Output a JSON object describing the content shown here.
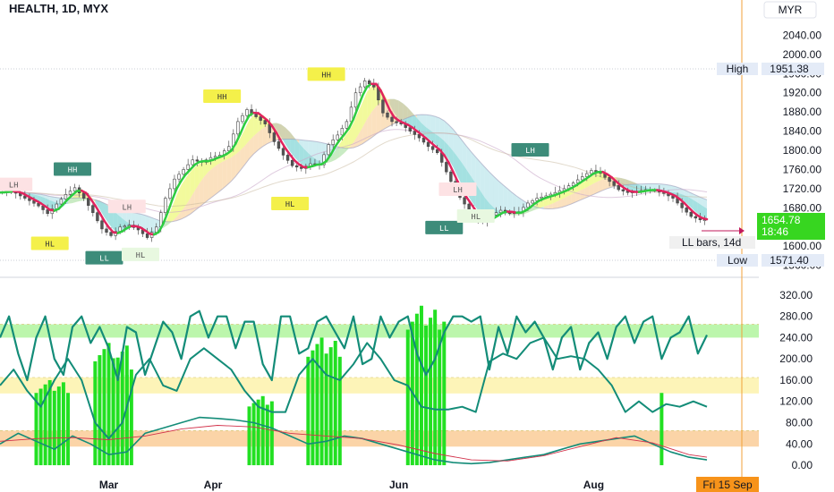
{
  "chart_data": {
    "type": "candlestick",
    "title": "HEALTH, 1D, MYX",
    "currency": "MYR",
    "price_axis": {
      "min": 1550,
      "max": 2080,
      "ticks": [
        "2040.00",
        "2000.00",
        "1960.00",
        "1920.00",
        "1880.00",
        "1840.00",
        "1800.00",
        "1760.00",
        "1720.00",
        "1680.00",
        "1640.00",
        "1600.00",
        "1560.00"
      ]
    },
    "osc_axis": {
      "min": -10,
      "max": 340,
      "ticks": [
        "320.00",
        "280.00",
        "240.00",
        "200.00",
        "160.00",
        "120.00",
        "80.00",
        "40.00",
        "0.00"
      ]
    },
    "x_labels": [
      {
        "label": "Mar",
        "day": 24
      },
      {
        "label": "Apr",
        "day": 47
      },
      {
        "label": "Jun",
        "day": 88
      },
      {
        "label": "Aug",
        "day": 131
      }
    ],
    "date_badge": "Fri 15 Sep",
    "days_total": 157,
    "markers": {
      "high": {
        "label": "High",
        "value": "1951.38",
        "price": 1951.38
      },
      "low": {
        "label": "Low",
        "value": "1571.40",
        "price": 1571.4
      },
      "last": {
        "value": "1654.78",
        "countdown": "18:46",
        "price": 1654.78
      },
      "note": "LL bars, 14d"
    },
    "bands_osc": [
      {
        "from": 240,
        "to": 265,
        "color": "#b5f5a3"
      },
      {
        "from": 135,
        "to": 165,
        "color": "#fdf3b0"
      },
      {
        "from": 35,
        "to": 65,
        "color": "#fbcf9d"
      }
    ],
    "close": [
      [
        0,
        1712
      ],
      [
        3,
        1716
      ],
      [
        5,
        1705
      ],
      [
        7,
        1695
      ],
      [
        9,
        1684
      ],
      [
        11,
        1668
      ],
      [
        13,
        1688
      ],
      [
        15,
        1708
      ],
      [
        17,
        1722
      ],
      [
        19,
        1700
      ],
      [
        21,
        1670
      ],
      [
        23,
        1636
      ],
      [
        25,
        1622
      ],
      [
        27,
        1640
      ],
      [
        29,
        1644
      ],
      [
        31,
        1634
      ],
      [
        33,
        1618
      ],
      [
        35,
        1640
      ],
      [
        37,
        1700
      ],
      [
        39,
        1740
      ],
      [
        41,
        1760
      ],
      [
        43,
        1780
      ],
      [
        45,
        1775
      ],
      [
        47,
        1785
      ],
      [
        49,
        1790
      ],
      [
        51,
        1808
      ],
      [
        53,
        1860
      ],
      [
        55,
        1885
      ],
      [
        57,
        1870
      ],
      [
        59,
        1855
      ],
      [
        61,
        1818
      ],
      [
        63,
        1790
      ],
      [
        65,
        1768
      ],
      [
        67,
        1762
      ],
      [
        69,
        1772
      ],
      [
        71,
        1770
      ],
      [
        73,
        1812
      ],
      [
        75,
        1832
      ],
      [
        77,
        1860
      ],
      [
        79,
        1920
      ],
      [
        81,
        1945
      ],
      [
        83,
        1932
      ],
      [
        85,
        1878
      ],
      [
        87,
        1860
      ],
      [
        89,
        1855
      ],
      [
        91,
        1840
      ],
      [
        93,
        1826
      ],
      [
        95,
        1808
      ],
      [
        97,
        1795
      ],
      [
        99,
        1755
      ],
      [
        101,
        1715
      ],
      [
        103,
        1688
      ],
      [
        105,
        1660
      ],
      [
        107,
        1652
      ],
      [
        109,
        1665
      ],
      [
        111,
        1675
      ],
      [
        113,
        1668
      ],
      [
        115,
        1672
      ],
      [
        117,
        1690
      ],
      [
        119,
        1700
      ],
      [
        121,
        1705
      ],
      [
        123,
        1712
      ],
      [
        125,
        1720
      ],
      [
        127,
        1732
      ],
      [
        129,
        1745
      ],
      [
        131,
        1758
      ],
      [
        133,
        1752
      ],
      [
        135,
        1735
      ],
      [
        137,
        1718
      ],
      [
        139,
        1712
      ],
      [
        141,
        1714
      ],
      [
        143,
        1718
      ],
      [
        145,
        1716
      ],
      [
        147,
        1710
      ],
      [
        149,
        1700
      ],
      [
        151,
        1680
      ],
      [
        153,
        1662
      ],
      [
        155,
        1655
      ]
    ],
    "labels": [
      {
        "text": "LH",
        "day": 3,
        "price": 1728,
        "style": "pink"
      },
      {
        "text": "HH",
        "day": 16,
        "price": 1760,
        "style": "teal"
      },
      {
        "text": "HL",
        "day": 11,
        "price": 1605,
        "style": "yellow"
      },
      {
        "text": "LH",
        "day": 28,
        "price": 1682,
        "style": "pink"
      },
      {
        "text": "LL",
        "day": 23,
        "price": 1575,
        "style": "teal"
      },
      {
        "text": "HL",
        "day": 31,
        "price": 1582,
        "style": "pale-green"
      },
      {
        "text": "HH",
        "day": 49,
        "price": 1912,
        "style": "yellow"
      },
      {
        "text": "HL",
        "day": 64,
        "price": 1688,
        "style": "yellow"
      },
      {
        "text": "HH",
        "day": 72,
        "price": 1958,
        "style": "yellow"
      },
      {
        "text": "LH",
        "day": 101,
        "price": 1718,
        "style": "pink"
      },
      {
        "text": "LL",
        "day": 98,
        "price": 1638,
        "style": "teal"
      },
      {
        "text": "HL",
        "day": 105,
        "price": 1662,
        "style": "pale-green"
      },
      {
        "text": "LH",
        "day": 117,
        "price": 1800,
        "style": "teal"
      }
    ],
    "osc_fast": [
      [
        0,
        240
      ],
      [
        2,
        280
      ],
      [
        4,
        210
      ],
      [
        6,
        160
      ],
      [
        8,
        240
      ],
      [
        10,
        280
      ],
      [
        12,
        200
      ],
      [
        14,
        170
      ],
      [
        16,
        260
      ],
      [
        18,
        280
      ],
      [
        20,
        230
      ],
      [
        22,
        260
      ],
      [
        24,
        220
      ],
      [
        26,
        160
      ],
      [
        28,
        260
      ],
      [
        30,
        250
      ],
      [
        32,
        170
      ],
      [
        34,
        220
      ],
      [
        36,
        270
      ],
      [
        38,
        250
      ],
      [
        40,
        200
      ],
      [
        42,
        280
      ],
      [
        44,
        290
      ],
      [
        46,
        240
      ],
      [
        48,
        280
      ],
      [
        50,
        280
      ],
      [
        52,
        220
      ],
      [
        54,
        270
      ],
      [
        56,
        270
      ],
      [
        58,
        190
      ],
      [
        60,
        160
      ],
      [
        62,
        280
      ],
      [
        64,
        280
      ],
      [
        66,
        210
      ],
      [
        68,
        220
      ],
      [
        70,
        270
      ],
      [
        72,
        280
      ],
      [
        74,
        250
      ],
      [
        76,
        220
      ],
      [
        78,
        280
      ],
      [
        80,
        190
      ],
      [
        82,
        200
      ],
      [
        84,
        280
      ],
      [
        86,
        240
      ],
      [
        88,
        270
      ],
      [
        90,
        280
      ],
      [
        92,
        210
      ],
      [
        94,
        170
      ],
      [
        96,
        200
      ],
      [
        98,
        250
      ],
      [
        100,
        280
      ],
      [
        102,
        280
      ],
      [
        104,
        270
      ],
      [
        106,
        280
      ],
      [
        108,
        180
      ],
      [
        110,
        260
      ],
      [
        112,
        210
      ],
      [
        114,
        280
      ],
      [
        116,
        250
      ],
      [
        118,
        270
      ],
      [
        120,
        240
      ],
      [
        122,
        180
      ],
      [
        124,
        240
      ],
      [
        126,
        260
      ],
      [
        128,
        180
      ],
      [
        130,
        230
      ],
      [
        132,
        250
      ],
      [
        134,
        200
      ],
      [
        136,
        260
      ],
      [
        138,
        280
      ],
      [
        140,
        230
      ],
      [
        142,
        270
      ],
      [
        144,
        280
      ],
      [
        146,
        200
      ],
      [
        148,
        240
      ],
      [
        150,
        250
      ],
      [
        152,
        280
      ],
      [
        154,
        210
      ],
      [
        156,
        245
      ]
    ],
    "osc_mid": [
      [
        0,
        150
      ],
      [
        3,
        180
      ],
      [
        6,
        140
      ],
      [
        9,
        110
      ],
      [
        12,
        160
      ],
      [
        15,
        200
      ],
      [
        18,
        160
      ],
      [
        21,
        80
      ],
      [
        24,
        50
      ],
      [
        27,
        80
      ],
      [
        30,
        170
      ],
      [
        33,
        200
      ],
      [
        36,
        150
      ],
      [
        39,
        140
      ],
      [
        42,
        200
      ],
      [
        45,
        220
      ],
      [
        48,
        200
      ],
      [
        51,
        180
      ],
      [
        54,
        140
      ],
      [
        57,
        110
      ],
      [
        60,
        100
      ],
      [
        63,
        100
      ],
      [
        66,
        170
      ],
      [
        69,
        200
      ],
      [
        72,
        170
      ],
      [
        75,
        160
      ],
      [
        78,
        190
      ],
      [
        81,
        230
      ],
      [
        84,
        200
      ],
      [
        87,
        160
      ],
      [
        90,
        150
      ],
      [
        93,
        110
      ],
      [
        96,
        105
      ],
      [
        99,
        105
      ],
      [
        102,
        110
      ],
      [
        105,
        100
      ],
      [
        108,
        195
      ],
      [
        111,
        210
      ],
      [
        114,
        200
      ],
      [
        117,
        230
      ],
      [
        120,
        240
      ],
      [
        123,
        200
      ],
      [
        126,
        205
      ],
      [
        129,
        200
      ],
      [
        132,
        180
      ],
      [
        135,
        150
      ],
      [
        138,
        100
      ],
      [
        141,
        120
      ],
      [
        144,
        100
      ],
      [
        147,
        115
      ],
      [
        150,
        110
      ],
      [
        153,
        120
      ],
      [
        156,
        110
      ]
    ],
    "osc_slow": [
      [
        0,
        40
      ],
      [
        4,
        60
      ],
      [
        8,
        45
      ],
      [
        12,
        30
      ],
      [
        16,
        55
      ],
      [
        20,
        40
      ],
      [
        24,
        20
      ],
      [
        28,
        25
      ],
      [
        32,
        60
      ],
      [
        36,
        70
      ],
      [
        40,
        80
      ],
      [
        44,
        90
      ],
      [
        48,
        88
      ],
      [
        52,
        85
      ],
      [
        56,
        80
      ],
      [
        60,
        70
      ],
      [
        64,
        55
      ],
      [
        68,
        40
      ],
      [
        72,
        45
      ],
      [
        76,
        55
      ],
      [
        80,
        50
      ],
      [
        84,
        40
      ],
      [
        88,
        30
      ],
      [
        92,
        20
      ],
      [
        96,
        10
      ],
      [
        100,
        5
      ],
      [
        104,
        3
      ],
      [
        108,
        5
      ],
      [
        112,
        10
      ],
      [
        116,
        15
      ],
      [
        120,
        20
      ],
      [
        124,
        30
      ],
      [
        128,
        40
      ],
      [
        132,
        45
      ],
      [
        136,
        50
      ],
      [
        140,
        55
      ],
      [
        144,
        40
      ],
      [
        148,
        25
      ],
      [
        152,
        15
      ],
      [
        156,
        10
      ]
    ],
    "osc_signal": [
      [
        0,
        45
      ],
      [
        8,
        50
      ],
      [
        16,
        52
      ],
      [
        24,
        48
      ],
      [
        32,
        55
      ],
      [
        40,
        68
      ],
      [
        48,
        75
      ],
      [
        56,
        72
      ],
      [
        64,
        60
      ],
      [
        72,
        55
      ],
      [
        80,
        50
      ],
      [
        88,
        38
      ],
      [
        96,
        22
      ],
      [
        104,
        10
      ],
      [
        112,
        8
      ],
      [
        120,
        18
      ],
      [
        128,
        35
      ],
      [
        136,
        52
      ],
      [
        144,
        42
      ],
      [
        152,
        20
      ],
      [
        156,
        15
      ]
    ],
    "volume_spikes": [
      [
        8,
        8,
        160
      ],
      [
        21,
        5,
        230
      ],
      [
        25,
        4,
        225
      ],
      [
        28,
        2,
        200
      ],
      [
        55,
        6,
        130
      ],
      [
        68,
        8,
        240
      ],
      [
        90,
        9,
        300
      ],
      [
        146,
        1,
        160
      ]
    ]
  }
}
